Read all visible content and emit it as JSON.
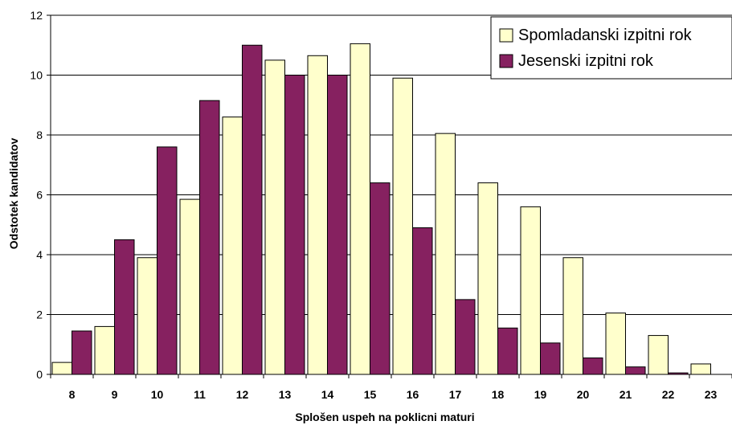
{
  "chart_data": {
    "type": "bar",
    "xlabel": "Splošen uspeh na poklicni maturi",
    "ylabel": "Odstotek kandidatov",
    "ylim": [
      0,
      12
    ],
    "yticks": [
      0,
      2,
      4,
      6,
      8,
      10,
      12
    ],
    "grid": true,
    "legend_position": "top-right",
    "categories": [
      "8",
      "9",
      "10",
      "11",
      "12",
      "13",
      "14",
      "15",
      "16",
      "17",
      "18",
      "19",
      "20",
      "21",
      "22",
      "23"
    ],
    "series": [
      {
        "name": "Spomladanski izpitni rok",
        "color": "#ffffcc",
        "values": [
          0.4,
          1.6,
          3.9,
          5.85,
          8.6,
          10.5,
          10.65,
          11.05,
          9.9,
          8.05,
          6.4,
          5.6,
          3.9,
          2.05,
          1.3,
          0.35
        ]
      },
      {
        "name": "Jesenski izpitni rok",
        "color": "#862160",
        "values": [
          1.45,
          4.5,
          7.6,
          9.15,
          11.0,
          10.0,
          10.0,
          6.4,
          4.9,
          2.5,
          1.55,
          1.05,
          0.55,
          0.25,
          0.05,
          0
        ]
      }
    ]
  }
}
